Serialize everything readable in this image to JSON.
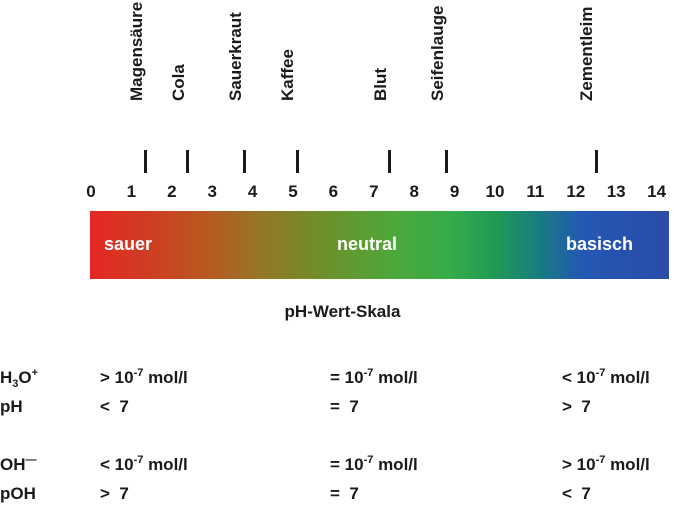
{
  "markers": [
    {
      "label": "Magensäure",
      "ph": 1.35
    },
    {
      "label": "Cola",
      "ph": 2.4
    },
    {
      "label": "Sauerkraut",
      "ph": 3.8
    },
    {
      "label": "Kaffee",
      "ph": 5.1
    },
    {
      "label": "Blut",
      "ph": 7.4
    },
    {
      "label": "Seifenlauge",
      "ph": 8.8
    },
    {
      "label": "Zementleim",
      "ph": 12.5
    }
  ],
  "scale": {
    "numbers": [
      "0",
      "1",
      "2",
      "3",
      "4",
      "5",
      "6",
      "7",
      "8",
      "9",
      "10",
      "11",
      "12",
      "13",
      "14"
    ],
    "left_word": "sauer",
    "middle_word": "neutral",
    "right_word": "basisch",
    "title": "pH-Wert-Skala",
    "colors": {
      "acid": "#e52823",
      "neutral": "#37ac4b",
      "base": "#2a4ca8"
    }
  },
  "table": {
    "h3o": {
      "label_main": "H",
      "label_sub": "3",
      "label_end": "O",
      "label_sup": "+",
      "acid_prefix": "> 10",
      "neutral_prefix": "= 10",
      "base_prefix": "< 10",
      "exponent": "-7",
      "unit": " mol/l"
    },
    "ph": {
      "label": "pH",
      "acid": "<  7",
      "neutral": "=  7",
      "base": ">  7"
    },
    "oh": {
      "label_main": "OH",
      "label_sup": "—",
      "acid_prefix": "< 10",
      "neutral_prefix": "= 10",
      "base_prefix": "> 10",
      "exponent": "-7",
      "unit": " mol/l"
    },
    "poh": {
      "label": "pOH",
      "acid": ">  7",
      "neutral": "=  7",
      "base": "<  7"
    }
  }
}
